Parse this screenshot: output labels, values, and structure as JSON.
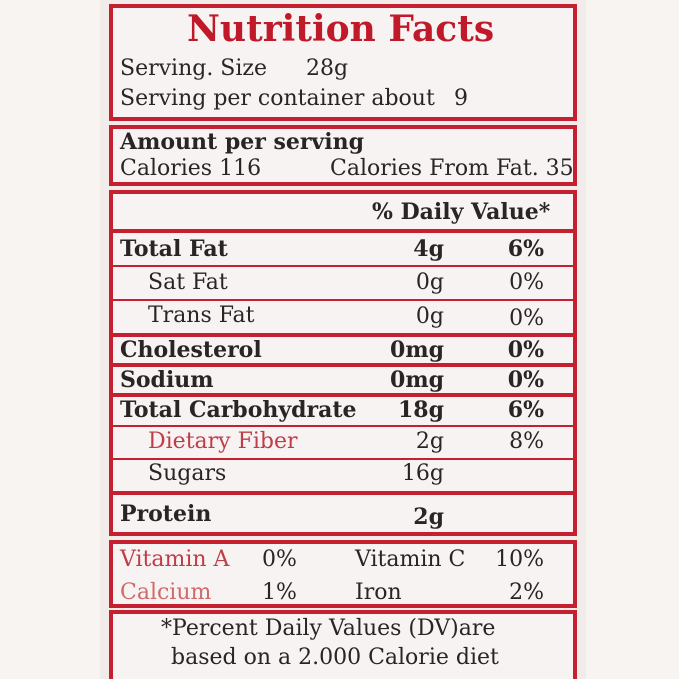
{
  "title": "Nutrition Facts",
  "serving_size_label": "Serving. Size",
  "serving_size_value": "28g",
  "servings_label": "Serving per container about",
  "servings_value": "9",
  "amount_per_serving": "Amount per serving",
  "calories": "Calories 116",
  "calories_from_fat": "Calories From Fat. 35",
  "daily_value_header": "% Daily Value*",
  "nutrients": [
    {
      "name": "Total Fat",
      "amount": "4g",
      "dv": "6%"
    },
    {
      "name": "Sat Fat",
      "amount": "0g",
      "dv": "0%"
    },
    {
      "name": "Trans Fat",
      "amount": "0g",
      "dv": "0%"
    },
    {
      "name": "Cholesterol",
      "amount": "0mg",
      "dv": "0%"
    },
    {
      "name": "Sodium",
      "amount": "0mg",
      "dv": "0%"
    },
    {
      "name": "Total Carbohydrate",
      "amount": "18g",
      "dv": "6%"
    },
    {
      "name": "Dietary Fiber",
      "amount": "2g",
      "dv": "8%"
    },
    {
      "name": "Sugars",
      "amount": "16g",
      "dv": ""
    },
    {
      "name": "Protein",
      "amount": "2g",
      "dv": ""
    }
  ],
  "vitamins": [
    {
      "name": "Vitamin A",
      "value": "0%"
    },
    {
      "name": "Vitamin C",
      "value": "10%"
    },
    {
      "name": "Calcium",
      "value": "1%"
    },
    {
      "name": "Iron",
      "value": "2%"
    }
  ],
  "footnote_line1": "*Percent Daily Values (DV)are",
  "footnote_line2": "based on a 2.000 Calorie diet",
  "colors": {
    "label_red": "#c5202f",
    "title_red": "#c01a2a",
    "text": "#2a2424"
  }
}
